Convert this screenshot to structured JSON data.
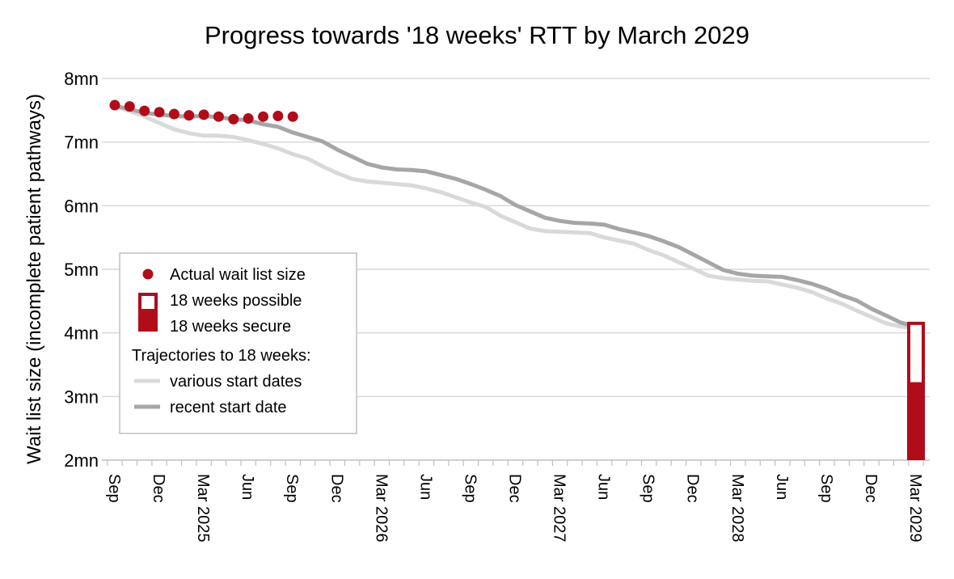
{
  "chart_data": {
    "type": "line",
    "title": "Progress towards '18 weeks' RTT by March 2029",
    "ylabel": "Wait list size (incomplete patient pathways)",
    "xlabel": "",
    "ylim": [
      2,
      8
    ],
    "y_unit": "mn",
    "y_ticks": [
      "2mn",
      "3mn",
      "4mn",
      "5mn",
      "6mn",
      "7mn",
      "8mn"
    ],
    "x_range": [
      "2024-09",
      "2029-03"
    ],
    "x_tick_labels": [
      "Sep",
      "Dec",
      "Mar 2025",
      "Jun",
      "Sep",
      "Dec",
      "Mar 2026",
      "Jun",
      "Sep",
      "Dec",
      "Mar 2027",
      "Jun",
      "Sep",
      "Dec",
      "Mar 2028",
      "Jun",
      "Sep",
      "Dec",
      "Mar 2029"
    ],
    "grid": true,
    "legend_position": "left-center",
    "legend": {
      "actual": "Actual wait list size",
      "possible": "18 weeks possible",
      "secure": "18 weeks secure",
      "header": "Trajectories to 18 weeks:",
      "various": "various start dates",
      "recent": "recent start date"
    },
    "series": [
      {
        "name": "Actual wait list size",
        "style": "markers",
        "color": "#b00c1a",
        "x": [
          "2024-09",
          "2024-10",
          "2024-11",
          "2024-12",
          "2025-01",
          "2025-02",
          "2025-03",
          "2025-04",
          "2025-05",
          "2025-06",
          "2025-07",
          "2025-08",
          "2025-09"
        ],
        "values": [
          7.58,
          7.56,
          7.49,
          7.47,
          7.44,
          7.42,
          7.43,
          7.4,
          7.36,
          7.37,
          7.4,
          7.41,
          7.4
        ]
      },
      {
        "name": "various start dates",
        "style": "line",
        "color": "#d9d9d9",
        "x": [
          "2024-09",
          "2024-11",
          "2024-12",
          "2025-01",
          "2025-02",
          "2025-03",
          "2025-04",
          "2025-05",
          "2025-06",
          "2025-07",
          "2025-08",
          "2025-09",
          "2025-10",
          "2025-11",
          "2025-12",
          "2026-01",
          "2026-02",
          "2026-03",
          "2026-04",
          "2026-05",
          "2026-06",
          "2026-07",
          "2026-08",
          "2026-09",
          "2026-10",
          "2026-11",
          "2026-12",
          "2027-01",
          "2027-02",
          "2027-03",
          "2027-04",
          "2027-05",
          "2027-06",
          "2027-07",
          "2027-08",
          "2027-09",
          "2027-10",
          "2027-11",
          "2027-12",
          "2028-01",
          "2028-02",
          "2028-03",
          "2028-04",
          "2028-05",
          "2028-06",
          "2028-07",
          "2028-08",
          "2028-09",
          "2028-10",
          "2028-11",
          "2028-12",
          "2029-01",
          "2029-02",
          "2029-03"
        ],
        "values": [
          7.57,
          7.4,
          7.3,
          7.2,
          7.14,
          7.1,
          7.1,
          7.08,
          7.03,
          6.97,
          6.9,
          6.81,
          6.74,
          6.62,
          6.51,
          6.42,
          6.38,
          6.36,
          6.34,
          6.32,
          6.27,
          6.21,
          6.13,
          6.05,
          5.98,
          5.84,
          5.74,
          5.64,
          5.6,
          5.59,
          5.58,
          5.57,
          5.5,
          5.45,
          5.4,
          5.3,
          5.22,
          5.11,
          5.01,
          4.9,
          4.86,
          4.84,
          4.82,
          4.81,
          4.76,
          4.71,
          4.64,
          4.54,
          4.46,
          4.35,
          4.25,
          4.15,
          4.1,
          4.07
        ]
      },
      {
        "name": "recent start date",
        "style": "line",
        "color": "#a6a6a6",
        "x": [
          "2024-09",
          "2024-11",
          "2024-12",
          "2025-01",
          "2025-02",
          "2025-03",
          "2025-04",
          "2025-05",
          "2025-06",
          "2025-07",
          "2025-08",
          "2025-09",
          "2025-10",
          "2025-11",
          "2025-12",
          "2026-01",
          "2026-02",
          "2026-03",
          "2026-04",
          "2026-05",
          "2026-06",
          "2026-07",
          "2026-08",
          "2026-09",
          "2026-10",
          "2026-11",
          "2026-12",
          "2027-01",
          "2027-02",
          "2027-03",
          "2027-04",
          "2027-05",
          "2027-06",
          "2027-07",
          "2027-08",
          "2027-09",
          "2027-10",
          "2027-11",
          "2027-12",
          "2028-01",
          "2028-02",
          "2028-03",
          "2028-04",
          "2028-05",
          "2028-06",
          "2028-07",
          "2028-08",
          "2028-09",
          "2028-10",
          "2028-11",
          "2028-12",
          "2029-01",
          "2029-02",
          "2029-03"
        ],
        "values": [
          7.57,
          7.46,
          7.43,
          7.41,
          7.4,
          7.41,
          7.39,
          7.36,
          7.34,
          7.28,
          7.24,
          7.15,
          7.08,
          7.01,
          6.88,
          6.77,
          6.66,
          6.6,
          6.57,
          6.56,
          6.54,
          6.48,
          6.42,
          6.34,
          6.25,
          6.15,
          6.01,
          5.91,
          5.81,
          5.76,
          5.73,
          5.72,
          5.7,
          5.63,
          5.58,
          5.52,
          5.44,
          5.35,
          5.23,
          5.11,
          4.99,
          4.93,
          4.9,
          4.89,
          4.88,
          4.83,
          4.77,
          4.69,
          4.59,
          4.51,
          4.38,
          4.27,
          4.16,
          4.1
        ]
      }
    ],
    "bars": {
      "x": "2029-03",
      "secure": [
        2.0,
        3.2
      ],
      "possible": [
        3.2,
        4.15
      ],
      "color": "#b00c1a"
    }
  }
}
